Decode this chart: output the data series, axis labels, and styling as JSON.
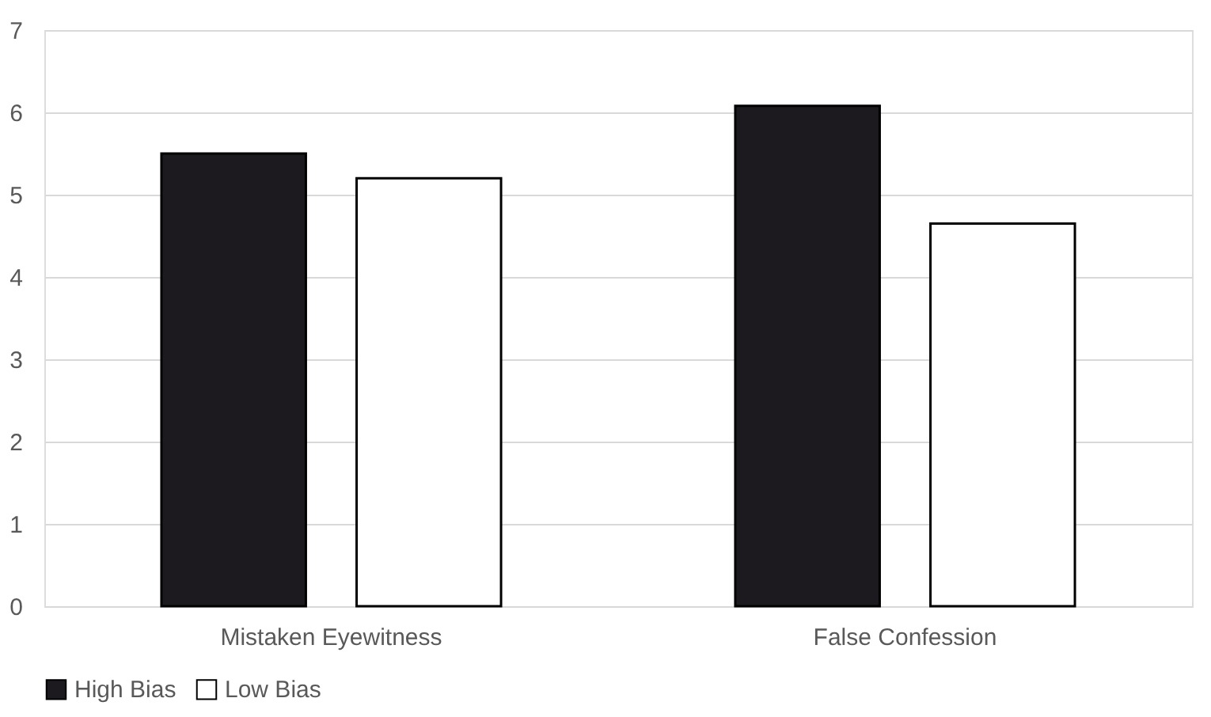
{
  "chart_data": {
    "type": "bar",
    "categories": [
      "Mistaken Eyewitness",
      "False Confession"
    ],
    "series": [
      {
        "name": "High Bias",
        "color": "#1c1a1e",
        "values": [
          5.5,
          6.08
        ]
      },
      {
        "name": "Low Bias",
        "color": "#ffffff",
        "values": [
          5.2,
          4.65
        ]
      }
    ],
    "ylim": [
      0,
      7
    ],
    "yticks": [
      0,
      1,
      2,
      3,
      4,
      5,
      6,
      7
    ],
    "grid": "y",
    "legend": "bottom"
  }
}
